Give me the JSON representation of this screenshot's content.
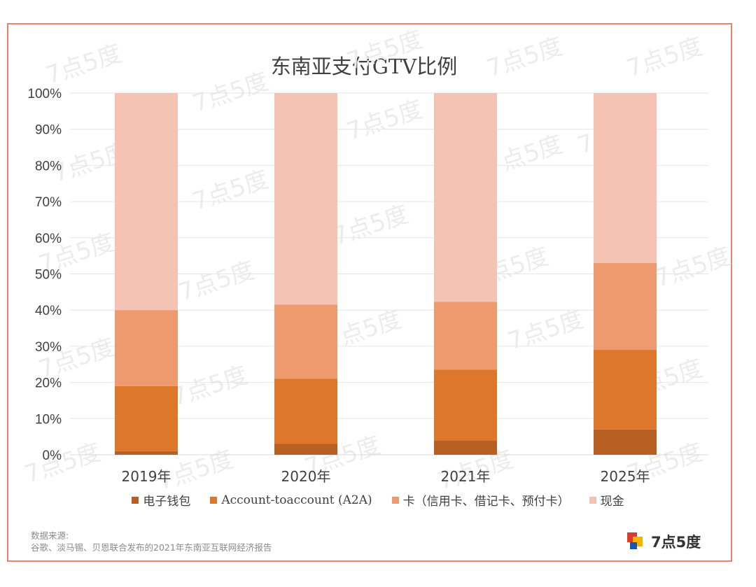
{
  "chart_data": {
    "type": "bar",
    "stacked": true,
    "title": "东南亚支付GTV比例",
    "categories": [
      "2019年",
      "2020年",
      "2021年",
      "2025年"
    ],
    "series": [
      {
        "name": "电子钱包",
        "values": [
          1,
          3,
          4,
          7
        ],
        "color": "#b85f23"
      },
      {
        "name": "Account-toaccount (A2A)",
        "values": [
          18,
          18,
          19.5,
          22
        ],
        "color": "#dc772c"
      },
      {
        "name": "卡（信用卡、借记卡、预付卡）",
        "values": [
          21,
          20.5,
          18.8,
          24
        ],
        "color": "#ec9a6e"
      },
      {
        "name": "现金",
        "values": [
          60,
          58.5,
          57.7,
          47
        ],
        "color": "#f4c3b3"
      }
    ],
    "ylim": [
      0,
      100
    ],
    "yticks": [
      "0%",
      "10%",
      "20%",
      "30%",
      "40%",
      "50%",
      "60%",
      "70%",
      "80%",
      "90%",
      "100%"
    ],
    "grid": true,
    "legend_position": "bottom"
  },
  "source": {
    "label": "数据来源:",
    "text": "谷歌、淡马锡、贝恩联合发布的2021年东南亚互联网经济报告"
  },
  "logo": {
    "text": "7点5度"
  },
  "watermark": "7点5度",
  "colors": {
    "frame": "#e8836f",
    "grid": "#e6e6e6",
    "axis": "#d9d9d9",
    "text": "#404040"
  }
}
